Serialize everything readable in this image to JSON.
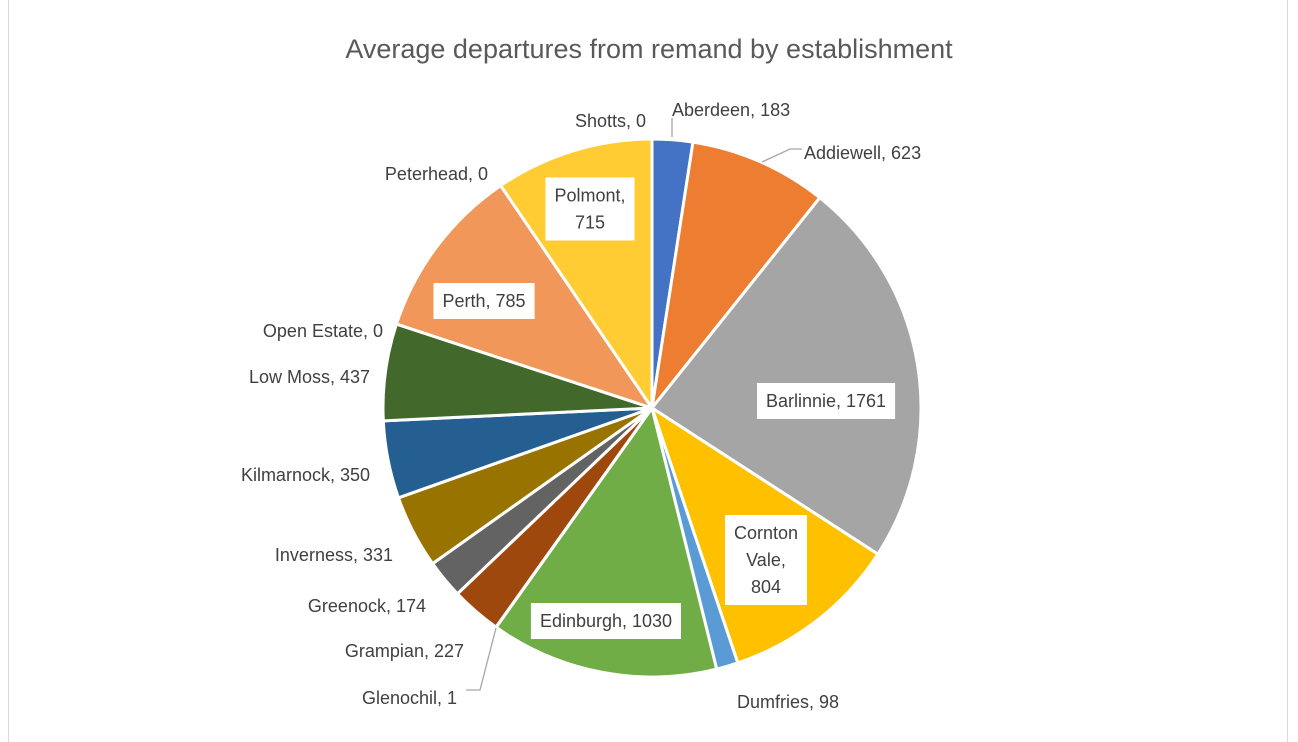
{
  "chart_data": {
    "type": "pie",
    "title": "Average departures from remand by establishment",
    "slices": [
      {
        "label": "Aberdeen",
        "value": 183,
        "color": "#4472c4",
        "text": "Aberdeen, 183"
      },
      {
        "label": "Addiewell",
        "value": 623,
        "color": "#ed7d31",
        "text": "Addiewell, 623"
      },
      {
        "label": "Barlinnie",
        "value": 1761,
        "color": "#a5a5a5",
        "text": "Barlinnie, 1761"
      },
      {
        "label": "Cornton Vale",
        "value": 804,
        "color": "#ffc000",
        "text": "Cornton Vale, 804"
      },
      {
        "label": "Dumfries",
        "value": 98,
        "color": "#5b9bd5",
        "text": "Dumfries, 98"
      },
      {
        "label": "Edinburgh",
        "value": 1030,
        "color": "#70ad47",
        "text": "Edinburgh, 1030"
      },
      {
        "label": "Glenochil",
        "value": 1,
        "color": "#264478",
        "text": "Glenochil, 1"
      },
      {
        "label": "Grampian",
        "value": 227,
        "color": "#9e480e",
        "text": "Grampian, 227"
      },
      {
        "label": "Greenock",
        "value": 174,
        "color": "#636363",
        "text": "Greenock, 174"
      },
      {
        "label": "Inverness",
        "value": 331,
        "color": "#997300",
        "text": "Inverness, 331"
      },
      {
        "label": "Kilmarnock",
        "value": 350,
        "color": "#255e91",
        "text": "Kilmarnock, 350"
      },
      {
        "label": "Low Moss",
        "value": 437,
        "color": "#43682b",
        "text": "Low Moss, 437"
      },
      {
        "label": "Open Estate",
        "value": 0,
        "color": "#698ed0",
        "text": "Open Estate, 0"
      },
      {
        "label": "Perth",
        "value": 785,
        "color": "#f1975a",
        "text": "Perth, 785"
      },
      {
        "label": "Peterhead",
        "value": 0,
        "color": "#b7b7b7",
        "text": "Peterhead, 0"
      },
      {
        "label": "Polmont",
        "value": 715,
        "color": "#ffcd33",
        "text": "Polmont, 715"
      },
      {
        "label": "Shotts",
        "value": 0,
        "color": "#5b9bd5",
        "text": "Shotts, 0"
      }
    ]
  }
}
